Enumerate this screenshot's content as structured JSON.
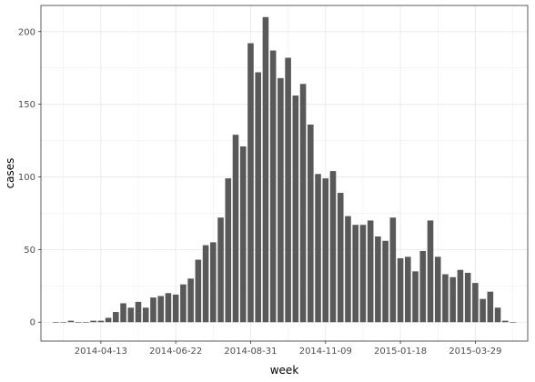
{
  "chart_data": {
    "type": "bar",
    "xlabel": "week",
    "ylabel": "cases",
    "x_tick_labels": [
      "2014-04-13",
      "2014-06-22",
      "2014-08-31",
      "2014-11-09",
      "2015-01-18",
      "2015-03-29"
    ],
    "y_ticks": [
      0,
      50,
      100,
      150,
      200
    ],
    "ylim": [
      -13,
      218
    ],
    "grid": true,
    "bar_color": "#595959",
    "background": "#ffffff",
    "panel_border": "#333333",
    "grid_color": "#ebebeb",
    "weeks": [
      "2014-03-02",
      "2014-03-09",
      "2014-03-16",
      "2014-03-23",
      "2014-03-30",
      "2014-04-06",
      "2014-04-13",
      "2014-04-20",
      "2014-04-27",
      "2014-05-04",
      "2014-05-11",
      "2014-05-18",
      "2014-05-25",
      "2014-06-01",
      "2014-06-08",
      "2014-06-15",
      "2014-06-22",
      "2014-06-29",
      "2014-07-06",
      "2014-07-13",
      "2014-07-20",
      "2014-07-27",
      "2014-08-03",
      "2014-08-10",
      "2014-08-17",
      "2014-08-24",
      "2014-08-31",
      "2014-09-07",
      "2014-09-14",
      "2014-09-21",
      "2014-09-28",
      "2014-10-05",
      "2014-10-12",
      "2014-10-19",
      "2014-10-26",
      "2014-11-02",
      "2014-11-09",
      "2014-11-16",
      "2014-11-23",
      "2014-11-30",
      "2014-12-07",
      "2014-12-14",
      "2014-12-21",
      "2014-12-28",
      "2015-01-04",
      "2015-01-11",
      "2015-01-18",
      "2015-01-25",
      "2015-02-01",
      "2015-02-08",
      "2015-02-15",
      "2015-02-22",
      "2015-03-01",
      "2015-03-08",
      "2015-03-15",
      "2015-03-22",
      "2015-03-29",
      "2015-04-05",
      "2015-04-12",
      "2015-04-19",
      "2015-04-26",
      "2015-05-03"
    ],
    "values": [
      0,
      0,
      1,
      0,
      0,
      1,
      1,
      3,
      7,
      13,
      10,
      14,
      10,
      17,
      18,
      20,
      19,
      26,
      30,
      43,
      53,
      55,
      72,
      99,
      129,
      121,
      192,
      172,
      210,
      187,
      168,
      182,
      156,
      164,
      136,
      102,
      99,
      104,
      89,
      73,
      67,
      67,
      70,
      59,
      56,
      72,
      44,
      45,
      35,
      49,
      70,
      45,
      33,
      31,
      36,
      34,
      27,
      16,
      21,
      10,
      1,
      0
    ]
  }
}
